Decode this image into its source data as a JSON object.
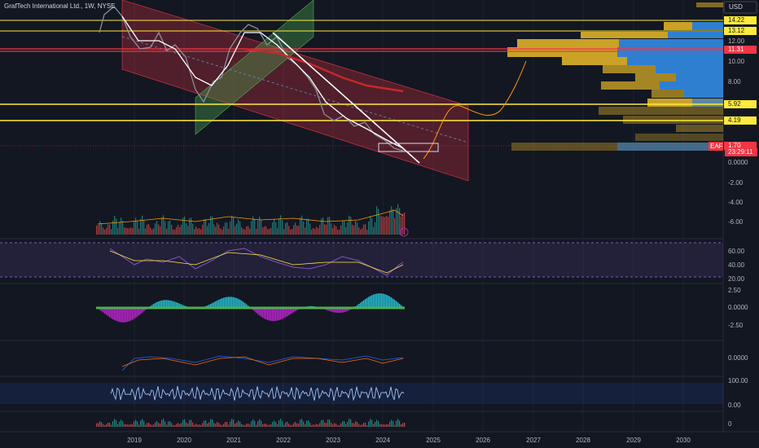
{
  "header": {
    "symbol": "GrafTech International Ltd., 1W, NYSE",
    "currency": "USD"
  },
  "price_axis": [
    "14.22",
    "13.12",
    "12.00",
    "11.31",
    "10.00",
    "8.00",
    "5.92",
    "4.19",
    "1.70",
    "0.0000",
    "-2.00",
    "-4.00",
    "-6.00",
    "60.00",
    "40.00",
    "20.00",
    "2.50",
    "0.0000",
    "-2.50",
    "0.0000",
    "100.00",
    "0.00",
    "0"
  ],
  "ticker_badge": "EAF",
  "countdown": "23:29:11",
  "time_axis": [
    "2019",
    "2020",
    "2021",
    "2022",
    "2023",
    "2024",
    "2025",
    "2026",
    "2027",
    "2028",
    "2029",
    "2030"
  ]
}
